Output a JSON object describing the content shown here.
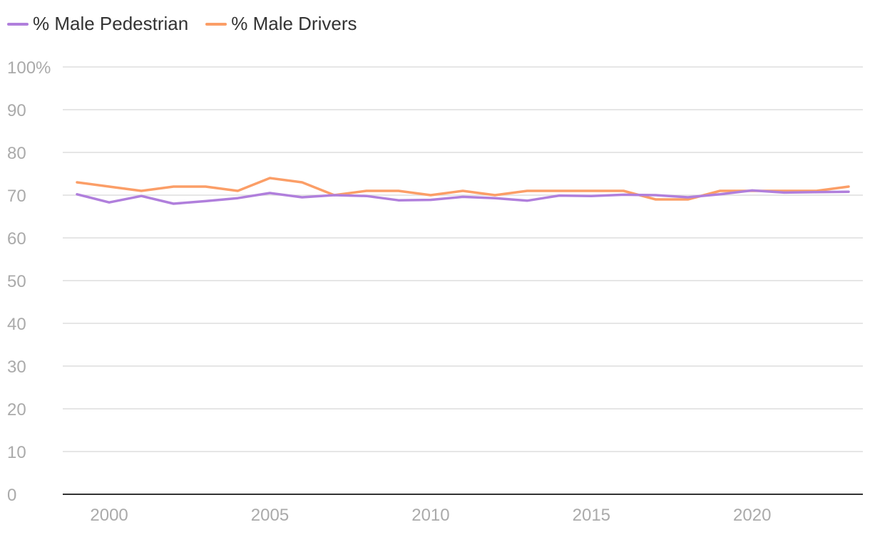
{
  "chart_data": {
    "type": "line",
    "title": "",
    "xlabel": "",
    "ylabel": "",
    "ylim": [
      0,
      100
    ],
    "xlim": [
      1999,
      2023
    ],
    "yticks": [
      0,
      10,
      20,
      30,
      40,
      50,
      60,
      70,
      80,
      90,
      100
    ],
    "ytick_labels": [
      "0",
      "10",
      "20",
      "30",
      "40",
      "50",
      "60",
      "70",
      "80",
      "90",
      "100%"
    ],
    "xticks": [
      2000,
      2005,
      2010,
      2015,
      2020
    ],
    "xtick_labels": [
      "2000",
      "2005",
      "2010",
      "2015",
      "2020"
    ],
    "grid": true,
    "legend_position": "top-left",
    "x": [
      1999,
      2000,
      2001,
      2002,
      2003,
      2004,
      2005,
      2006,
      2007,
      2008,
      2009,
      2010,
      2011,
      2012,
      2013,
      2014,
      2015,
      2016,
      2017,
      2018,
      2019,
      2020,
      2021,
      2022,
      2023
    ],
    "series": [
      {
        "name": "% Male Pedestrian",
        "color": "#b07fdc",
        "values": [
          70.2,
          68.3,
          69.8,
          68.0,
          68.6,
          69.3,
          70.5,
          69.5,
          70.0,
          69.8,
          68.8,
          68.9,
          69.6,
          69.3,
          68.7,
          69.9,
          69.8,
          70.1,
          70.0,
          69.5,
          70.2,
          71.1,
          70.6,
          70.7,
          70.8
        ]
      },
      {
        "name": "% Male Drivers",
        "color": "#fb9e67",
        "values": [
          73,
          72,
          71,
          72,
          72,
          71,
          74,
          73,
          70,
          71,
          71,
          70,
          71,
          70,
          71,
          71,
          71,
          71,
          69,
          69,
          71,
          71,
          71,
          71,
          72
        ]
      }
    ]
  }
}
